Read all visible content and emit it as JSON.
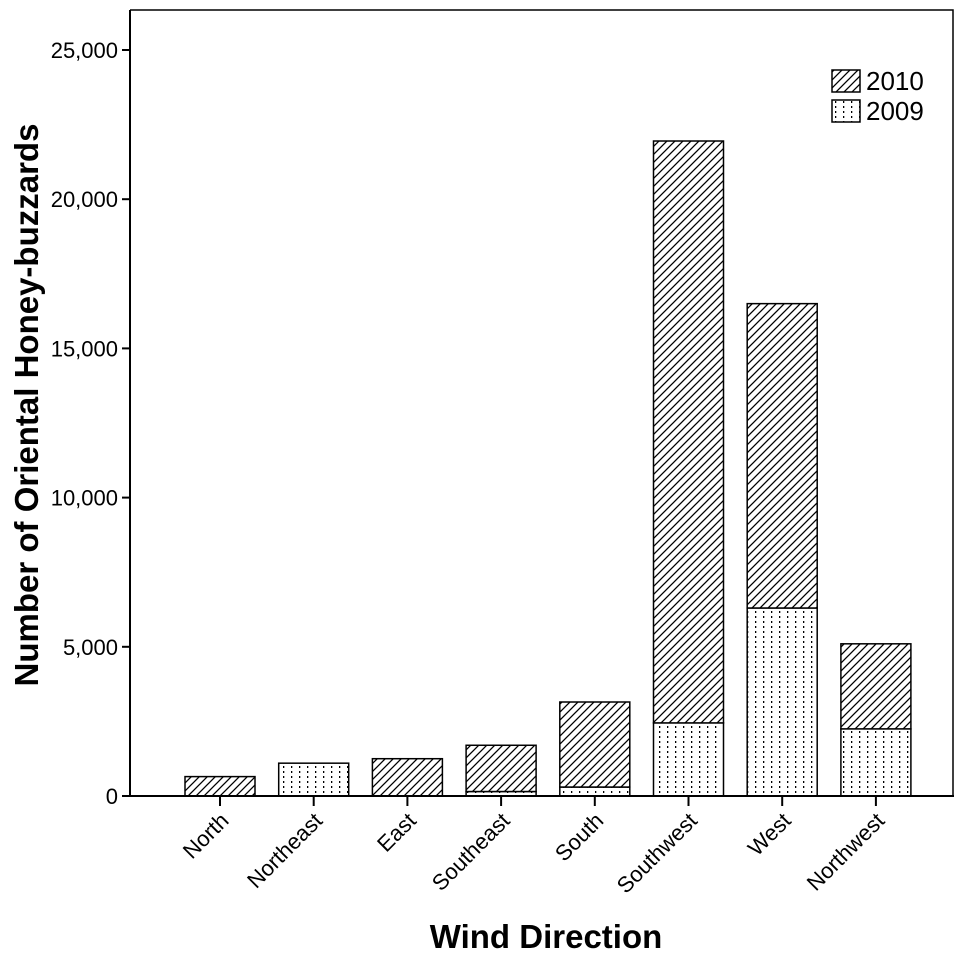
{
  "chart_data": {
    "type": "bar",
    "stacked": true,
    "xlabel": "Wind Direction",
    "ylabel": "Number of Oriental Honey-buzzards",
    "ylim": [
      0,
      25000
    ],
    "yticks": [
      0,
      5000,
      10000,
      15000,
      20000,
      25000
    ],
    "ytick_labels": [
      "0",
      "5,000",
      "10,000",
      "15,000",
      "20,000",
      "25,000"
    ],
    "categories": [
      "North",
      "Northeast",
      "East",
      "Southeast",
      "South",
      "Southwest",
      "West",
      "Northwest"
    ],
    "series": [
      {
        "name": "2009",
        "pattern": "dots",
        "values": [
          0,
          1100,
          0,
          150,
          300,
          2450,
          6300,
          2250
        ]
      },
      {
        "name": "2010",
        "pattern": "diagonal-hatch",
        "values": [
          650,
          0,
          1250,
          1550,
          2850,
          19500,
          10200,
          2850
        ]
      }
    ],
    "legend": {
      "position": "top-right",
      "order": [
        "2010",
        "2009"
      ]
    },
    "grid": false
  }
}
